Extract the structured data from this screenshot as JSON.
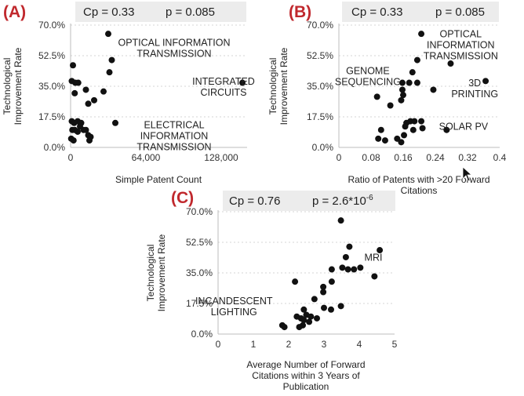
{
  "chart_data": [
    {
      "type": "scatter",
      "panel_label": "(A)",
      "stats": {
        "cp": "Cp = 0.33",
        "p": "p = 0.085"
      },
      "xlabel": "Simple Patent Count",
      "ylabel": [
        "Technological",
        "Improvement Rate"
      ],
      "xlim": [
        0,
        150000
      ],
      "ylim": [
        0,
        0.7
      ],
      "xticks": [
        0,
        64000,
        128000
      ],
      "xtick_labels": [
        "0",
        "64,000",
        "128,000"
      ],
      "yticks": [
        0,
        0.175,
        0.35,
        0.525,
        0.7
      ],
      "ytick_labels": [
        "0.0%",
        "17.5%",
        "35.0%",
        "52.5%",
        "70.0%"
      ],
      "grid": true,
      "points": [
        {
          "x": 2000,
          "y": 0.47
        },
        {
          "x": 1000,
          "y": 0.38
        },
        {
          "x": 4000,
          "y": 0.37
        },
        {
          "x": 6500,
          "y": 0.37
        },
        {
          "x": 3500,
          "y": 0.31
        },
        {
          "x": 13000,
          "y": 0.33
        },
        {
          "x": 15000,
          "y": 0.25
        },
        {
          "x": 20000,
          "y": 0.27
        },
        {
          "x": 28000,
          "y": 0.32
        },
        {
          "x": 32000,
          "y": 0.65
        },
        {
          "x": 35000,
          "y": 0.5
        },
        {
          "x": 33000,
          "y": 0.43
        },
        {
          "x": 38000,
          "y": 0.14
        },
        {
          "x": 155000,
          "y": 0.37
        },
        {
          "x": 1000,
          "y": 0.15
        },
        {
          "x": 3000,
          "y": 0.14
        },
        {
          "x": 6000,
          "y": 0.15
        },
        {
          "x": 9000,
          "y": 0.14
        },
        {
          "x": 8000,
          "y": 0.12
        },
        {
          "x": 1500,
          "y": 0.1
        },
        {
          "x": 3500,
          "y": 0.1
        },
        {
          "x": 6000,
          "y": 0.09
        },
        {
          "x": 11000,
          "y": 0.1
        },
        {
          "x": 13000,
          "y": 0.1
        },
        {
          "x": 500,
          "y": 0.05
        },
        {
          "x": 2500,
          "y": 0.04
        },
        {
          "x": 15000,
          "y": 0.07
        },
        {
          "x": 16000,
          "y": 0.04
        },
        {
          "x": 17000,
          "y": 0.06
        }
      ],
      "annotations": [
        {
          "lines": [
            "OPTICAL INFORMATION",
            "TRANSMISSION"
          ],
          "x": 88000,
          "y": 0.58
        },
        {
          "lines": [
            "INTEGRATED",
            "CIRCUITS"
          ],
          "x": 130000,
          "y": 0.36
        },
        {
          "lines": [
            "ELECTRICAL",
            "INFORMATION",
            "TRANSMISSION"
          ],
          "x": 88000,
          "y": 0.11
        }
      ]
    },
    {
      "type": "scatter",
      "panel_label": "(B)",
      "stats": {
        "cp": "Cp = 0.33",
        "p": "p = 0.085"
      },
      "xlabel": [
        "Ratio of Patents with >20 Forward",
        "Citations"
      ],
      "ylabel": [
        "Technological",
        "Improvement Rate"
      ],
      "xlim": [
        0,
        0.4
      ],
      "ylim": [
        0,
        0.7
      ],
      "xticks": [
        0,
        0.08,
        0.16,
        0.24,
        0.32,
        0.4
      ],
      "xtick_labels": [
        "0",
        "0.08",
        "0.16",
        "0.24",
        "0.32",
        "0.4"
      ],
      "yticks": [
        0,
        0.175,
        0.35,
        0.525,
        0.7
      ],
      "ytick_labels": [
        "0.0%",
        "17.5%",
        "35.0%",
        "52.5%",
        "70.0%"
      ],
      "grid": true,
      "points": [
        {
          "x": 0.205,
          "y": 0.65
        },
        {
          "x": 0.278,
          "y": 0.48
        },
        {
          "x": 0.195,
          "y": 0.5
        },
        {
          "x": 0.183,
          "y": 0.43
        },
        {
          "x": 0.158,
          "y": 0.37
        },
        {
          "x": 0.175,
          "y": 0.37
        },
        {
          "x": 0.195,
          "y": 0.37
        },
        {
          "x": 0.235,
          "y": 0.33
        },
        {
          "x": 0.158,
          "y": 0.33
        },
        {
          "x": 0.16,
          "y": 0.3
        },
        {
          "x": 0.095,
          "y": 0.29
        },
        {
          "x": 0.128,
          "y": 0.24
        },
        {
          "x": 0.155,
          "y": 0.27
        },
        {
          "x": 0.365,
          "y": 0.38
        },
        {
          "x": 0.178,
          "y": 0.15
        },
        {
          "x": 0.188,
          "y": 0.15
        },
        {
          "x": 0.205,
          "y": 0.15
        },
        {
          "x": 0.168,
          "y": 0.14
        },
        {
          "x": 0.165,
          "y": 0.12
        },
        {
          "x": 0.208,
          "y": 0.11
        },
        {
          "x": 0.105,
          "y": 0.1
        },
        {
          "x": 0.185,
          "y": 0.1
        },
        {
          "x": 0.268,
          "y": 0.1
        },
        {
          "x": 0.098,
          "y": 0.05
        },
        {
          "x": 0.115,
          "y": 0.04
        },
        {
          "x": 0.145,
          "y": 0.05
        },
        {
          "x": 0.155,
          "y": 0.03
        },
        {
          "x": 0.162,
          "y": 0.07
        }
      ],
      "annotations": [
        {
          "lines": [
            "OPTICAL",
            "INFORMATION",
            "TRANSMISSION"
          ],
          "x": 0.303,
          "y": 0.63
        },
        {
          "lines": [
            "GENOME",
            "SEQUENCING"
          ],
          "x": 0.072,
          "y": 0.42
        },
        {
          "lines": [
            "3D",
            "PRINTING"
          ],
          "x": 0.338,
          "y": 0.35
        },
        {
          "lines": [
            "SOLAR PV"
          ],
          "x": 0.31,
          "y": 0.1
        }
      ]
    },
    {
      "type": "scatter",
      "panel_label": "(C)",
      "stats": {
        "cp": "Cp = 0.76",
        "p": "p = 2.6*10",
        "p_exp": "-6"
      },
      "xlabel": [
        "Average Number of Forward",
        "Citations within 3 Years of",
        "Publication"
      ],
      "ylabel": [
        "Technological",
        "Improvement Rate"
      ],
      "xlim": [
        0,
        5
      ],
      "ylim": [
        0,
        0.7
      ],
      "xticks": [
        0,
        1,
        2,
        3,
        4,
        5
      ],
      "xtick_labels": [
        "0",
        "1",
        "2",
        "3",
        "4",
        "5"
      ],
      "yticks": [
        0,
        0.175,
        0.35,
        0.525,
        0.7
      ],
      "ytick_labels": [
        "0.0%",
        "17.5%",
        "35.0%",
        "52.5%",
        "70.0%"
      ],
      "grid": true,
      "points": [
        {
          "x": 3.48,
          "y": 0.65
        },
        {
          "x": 3.72,
          "y": 0.5
        },
        {
          "x": 3.62,
          "y": 0.44
        },
        {
          "x": 4.58,
          "y": 0.48
        },
        {
          "x": 3.68,
          "y": 0.37
        },
        {
          "x": 3.85,
          "y": 0.37
        },
        {
          "x": 4.03,
          "y": 0.38
        },
        {
          "x": 4.43,
          "y": 0.33
        },
        {
          "x": 3.22,
          "y": 0.37
        },
        {
          "x": 3.52,
          "y": 0.38
        },
        {
          "x": 2.98,
          "y": 0.27
        },
        {
          "x": 2.98,
          "y": 0.24
        },
        {
          "x": 3.22,
          "y": 0.3
        },
        {
          "x": 2.73,
          "y": 0.2
        },
        {
          "x": 2.18,
          "y": 0.3
        },
        {
          "x": 2.43,
          "y": 0.14
        },
        {
          "x": 2.23,
          "y": 0.1
        },
        {
          "x": 2.35,
          "y": 0.09
        },
        {
          "x": 2.5,
          "y": 0.11
        },
        {
          "x": 2.43,
          "y": 0.08
        },
        {
          "x": 2.63,
          "y": 0.1
        },
        {
          "x": 2.8,
          "y": 0.09
        },
        {
          "x": 2.58,
          "y": 0.07
        },
        {
          "x": 2.4,
          "y": 0.05
        },
        {
          "x": 1.82,
          "y": 0.05
        },
        {
          "x": 1.88,
          "y": 0.04
        },
        {
          "x": 2.3,
          "y": 0.04
        },
        {
          "x": 3.0,
          "y": 0.15
        },
        {
          "x": 3.2,
          "y": 0.14
        },
        {
          "x": 3.48,
          "y": 0.16
        }
      ],
      "annotations": [
        {
          "lines": [
            "MRI"
          ],
          "x": 4.4,
          "y": 0.42
        },
        {
          "lines": [
            "INCANDESCENT",
            "LIGHTING"
          ],
          "x": 0.45,
          "y": 0.17
        }
      ]
    }
  ],
  "colors": {
    "panel_label": "#c0282d",
    "dot": "#111111",
    "stat_box": "#ececec"
  }
}
